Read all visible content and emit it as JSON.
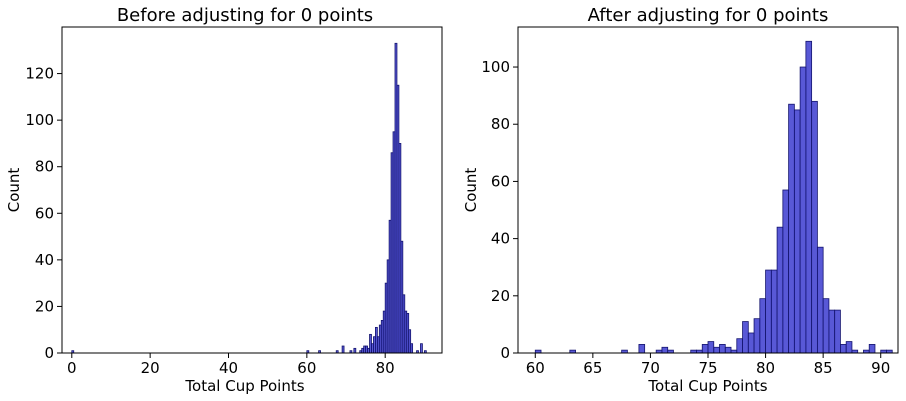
{
  "colors": {
    "bar_fill": "#2020c8",
    "bar_edge": "#14146e"
  },
  "chart_data": [
    {
      "type": "bar",
      "title": "Before adjusting for 0 points",
      "xlabel": "Total Cup Points",
      "ylabel": "Count",
      "xlim": [
        -2.5,
        94.5
      ],
      "ylim": [
        0,
        140
      ],
      "xticks": [
        "0",
        "20",
        "40",
        "60",
        "80"
      ],
      "yticks": [
        "0",
        "20",
        "40",
        "60",
        "80",
        "100",
        "120"
      ],
      "bin_width": 0.5,
      "bins": [
        {
          "x": 0,
          "count": 1
        },
        {
          "x": 60,
          "count": 1
        },
        {
          "x": 63,
          "count": 1
        },
        {
          "x": 67.5,
          "count": 1
        },
        {
          "x": 69,
          "count": 3
        },
        {
          "x": 71,
          "count": 1
        },
        {
          "x": 72,
          "count": 2
        },
        {
          "x": 73.5,
          "count": 1
        },
        {
          "x": 74,
          "count": 2
        },
        {
          "x": 74.5,
          "count": 3
        },
        {
          "x": 75,
          "count": 3
        },
        {
          "x": 75.5,
          "count": 2
        },
        {
          "x": 76,
          "count": 8
        },
        {
          "x": 76.5,
          "count": 4
        },
        {
          "x": 77,
          "count": 7
        },
        {
          "x": 77.5,
          "count": 11
        },
        {
          "x": 78,
          "count": 7
        },
        {
          "x": 78.5,
          "count": 12
        },
        {
          "x": 79,
          "count": 14
        },
        {
          "x": 79.5,
          "count": 18
        },
        {
          "x": 80,
          "count": 30
        },
        {
          "x": 80.5,
          "count": 40
        },
        {
          "x": 81,
          "count": 57
        },
        {
          "x": 81.5,
          "count": 86
        },
        {
          "x": 82,
          "count": 95
        },
        {
          "x": 82.5,
          "count": 133
        },
        {
          "x": 83,
          "count": 115
        },
        {
          "x": 83.5,
          "count": 90
        },
        {
          "x": 84,
          "count": 48
        },
        {
          "x": 84.5,
          "count": 25
        },
        {
          "x": 85,
          "count": 18
        },
        {
          "x": 85.5,
          "count": 17
        },
        {
          "x": 86,
          "count": 10
        },
        {
          "x": 86.5,
          "count": 4
        },
        {
          "x": 88,
          "count": 1
        },
        {
          "x": 89,
          "count": 4
        },
        {
          "x": 90,
          "count": 1
        }
      ]
    },
    {
      "type": "bar",
      "title": "After adjusting for 0 points",
      "xlabel": "Total Cup Points",
      "ylabel": "Count",
      "xlim": [
        58.5,
        91.5
      ],
      "ylim": [
        0,
        114
      ],
      "xticks": [
        "60",
        "65",
        "70",
        "75",
        "80",
        "85",
        "90"
      ],
      "yticks": [
        "0",
        "20",
        "40",
        "60",
        "80",
        "100"
      ],
      "bin_width": 0.5,
      "bins": [
        {
          "x": 60,
          "count": 1
        },
        {
          "x": 63,
          "count": 1
        },
        {
          "x": 67.5,
          "count": 1
        },
        {
          "x": 69,
          "count": 3
        },
        {
          "x": 70.5,
          "count": 1
        },
        {
          "x": 71,
          "count": 2
        },
        {
          "x": 71.5,
          "count": 1
        },
        {
          "x": 73.5,
          "count": 1
        },
        {
          "x": 74,
          "count": 1
        },
        {
          "x": 74.5,
          "count": 3
        },
        {
          "x": 75,
          "count": 4
        },
        {
          "x": 75.5,
          "count": 2
        },
        {
          "x": 76,
          "count": 3
        },
        {
          "x": 76.5,
          "count": 2
        },
        {
          "x": 77,
          "count": 1
        },
        {
          "x": 77.5,
          "count": 5
        },
        {
          "x": 78,
          "count": 11
        },
        {
          "x": 78.5,
          "count": 7
        },
        {
          "x": 79,
          "count": 12
        },
        {
          "x": 79.5,
          "count": 19
        },
        {
          "x": 80,
          "count": 29
        },
        {
          "x": 80.5,
          "count": 29
        },
        {
          "x": 81,
          "count": 44
        },
        {
          "x": 81.5,
          "count": 57
        },
        {
          "x": 82,
          "count": 87
        },
        {
          "x": 82.5,
          "count": 85
        },
        {
          "x": 83,
          "count": 100
        },
        {
          "x": 83.5,
          "count": 109
        },
        {
          "x": 84,
          "count": 88
        },
        {
          "x": 84.5,
          "count": 37
        },
        {
          "x": 85,
          "count": 19
        },
        {
          "x": 85.5,
          "count": 15
        },
        {
          "x": 86,
          "count": 15
        },
        {
          "x": 86.5,
          "count": 3
        },
        {
          "x": 87,
          "count": 4
        },
        {
          "x": 87.5,
          "count": 1
        },
        {
          "x": 88.5,
          "count": 1
        },
        {
          "x": 89,
          "count": 3
        },
        {
          "x": 90,
          "count": 1
        },
        {
          "x": 90.5,
          "count": 1
        }
      ]
    }
  ]
}
